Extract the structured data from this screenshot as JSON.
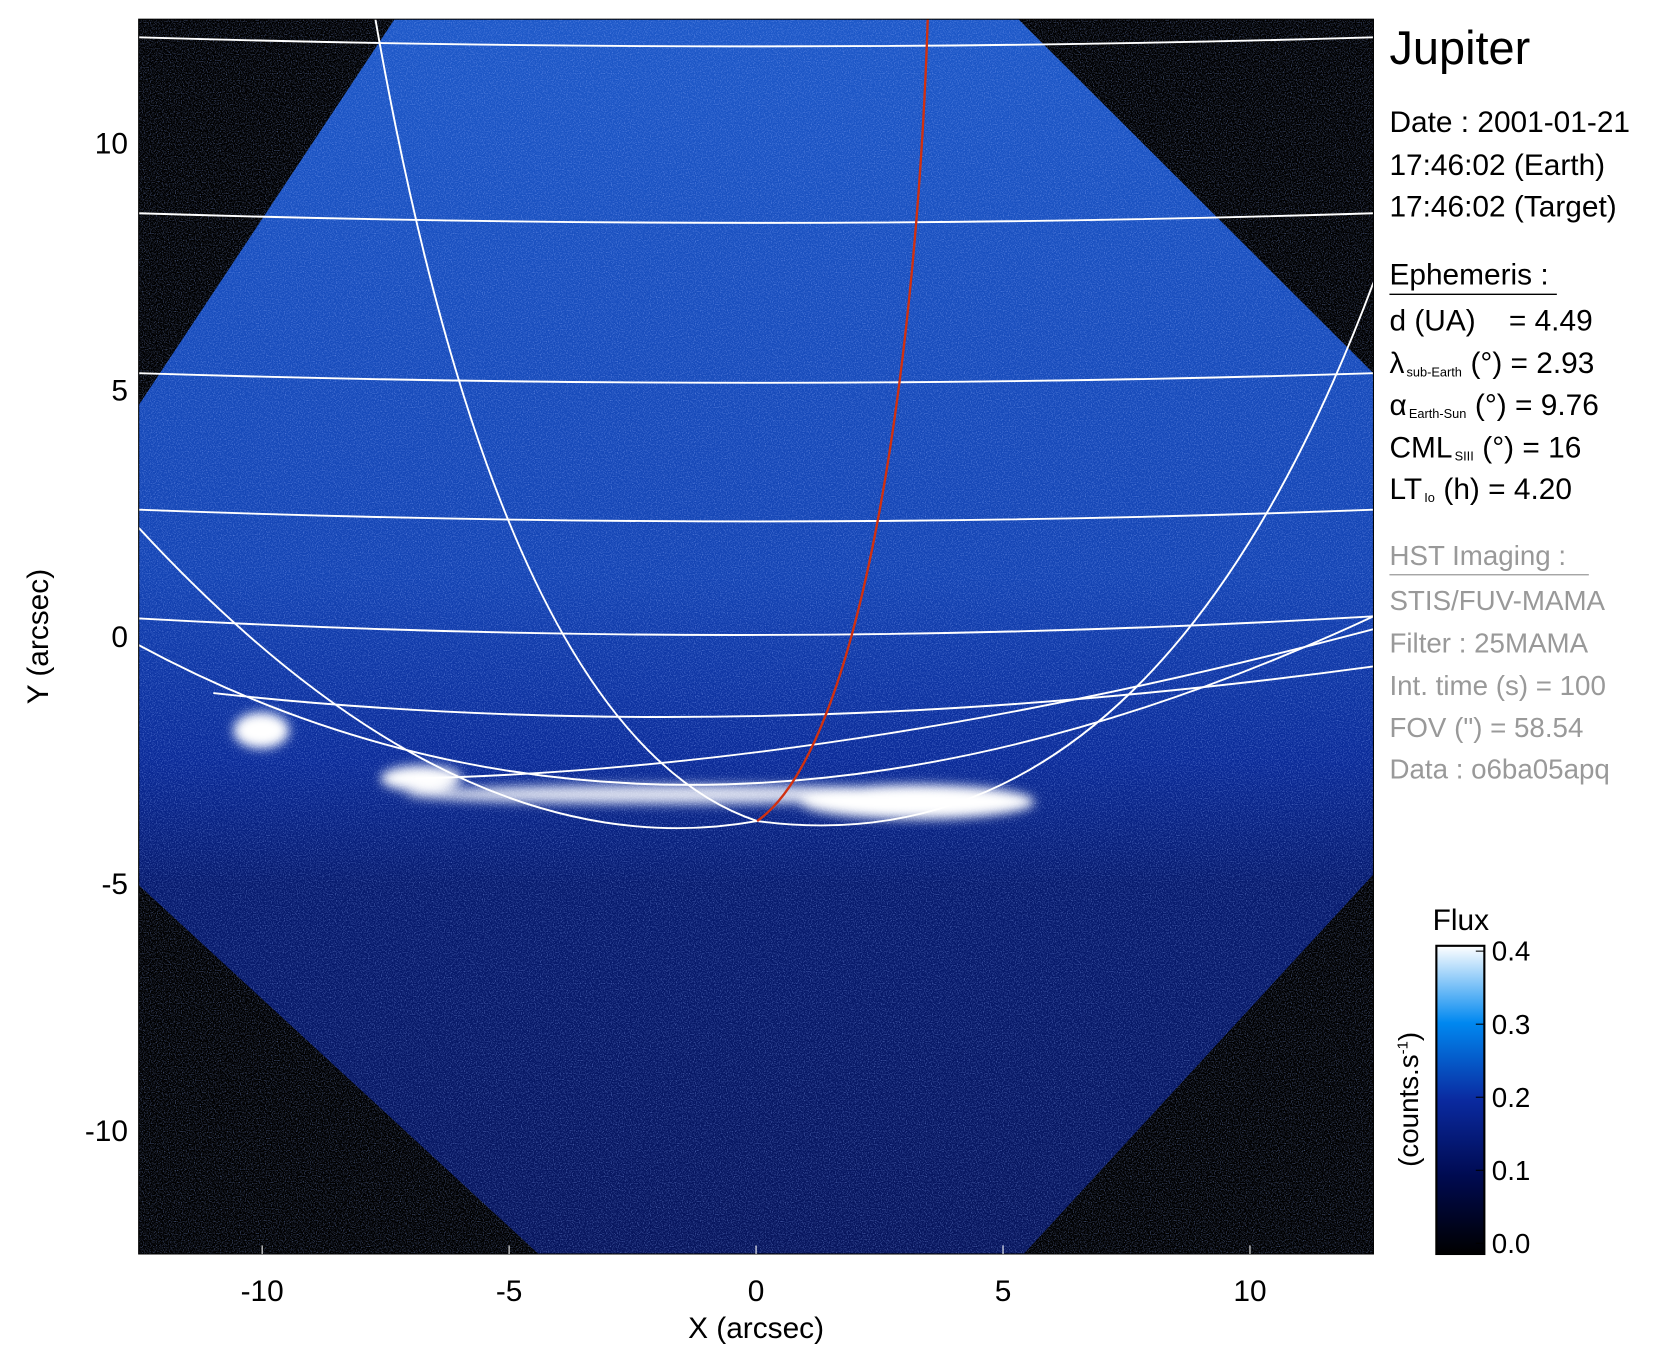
{
  "chart_data": {
    "type": "heatmap",
    "xlabel": "X (arcsec)",
    "ylabel": "Y (arcsec)",
    "xlim": [
      -12.5,
      12.5
    ],
    "ylim": [
      -12.5,
      12.5
    ],
    "xticks": [
      "-10",
      "-5",
      "0",
      "5",
      "10"
    ],
    "yticks": [
      "10",
      "5",
      "0",
      "-5",
      "-10"
    ],
    "colorbar": {
      "title": "Flux",
      "label": "(counts.s",
      "label_sup": "-1",
      "label_end": ")",
      "range": [
        0.0,
        0.4
      ],
      "ticks": [
        "0.0",
        "0.1",
        "0.2",
        "0.3",
        "0.4"
      ],
      "colors": [
        "#000000",
        "#000a50",
        "#0a2aa0",
        "#0088f0",
        "#ffffff"
      ]
    },
    "grid_color": "#ffffff",
    "footprint_color": "#d03010"
  },
  "info": {
    "title": "Jupiter",
    "date": "Date : 2001-01-21",
    "time_earth": "17:46:02 (Earth)",
    "time_target": "17:46:02 (Target)",
    "ephemeris_header": "Ephemeris :",
    "d": {
      "label": "d (UA)",
      "value": "= 4.49"
    },
    "lambda": {
      "sym": "λ",
      "sub": "sub-Earth",
      "rest": "(°) = 2.93"
    },
    "alpha": {
      "sym": "α",
      "sub": "Earth-Sun",
      "rest": "(°) = 9.76"
    },
    "cml": {
      "sym": "CML",
      "sub": "SIII",
      "rest": "(°) = 16"
    },
    "lt": {
      "sym": "LT",
      "sub": "Io",
      "rest": "(h) = 4.20"
    },
    "hst_header": "HST Imaging :",
    "instrument": "STIS/FUV-MAMA",
    "filter": "Filter : 25MAMA",
    "int_time": "Int. time (s) = 100",
    "fov": "FOV (\") = 58.54",
    "data": "Data : o6ba05apq"
  }
}
